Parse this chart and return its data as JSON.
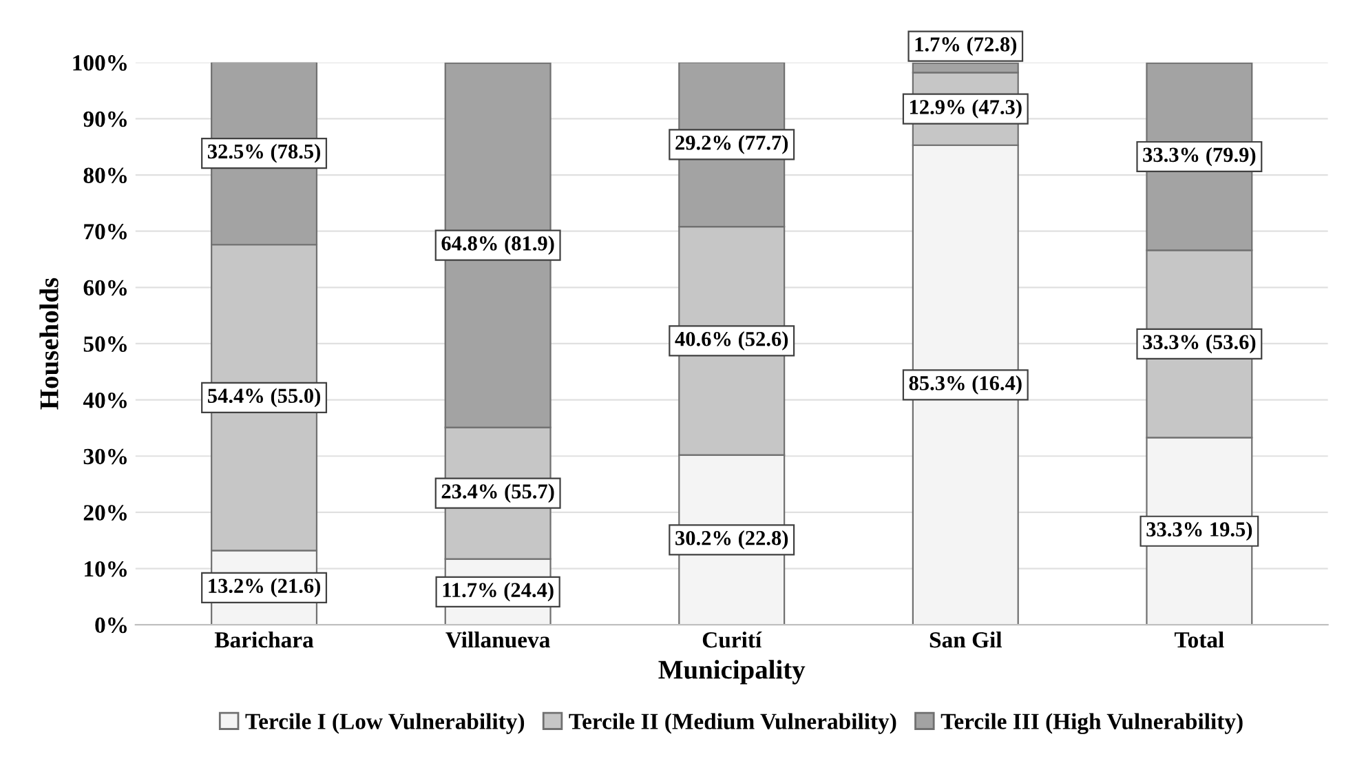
{
  "chart_data": {
    "type": "bar",
    "stacked": true,
    "xlabel": "Municipality",
    "ylabel": "Households",
    "categories": [
      "Barichara",
      "Villanueva",
      "Curití",
      "San Gil",
      "Total"
    ],
    "series": [
      {
        "name": "Tercile I (Low Vulnerability)",
        "color": "#f4f4f4",
        "values": [
          13.2,
          11.7,
          30.2,
          85.3,
          33.3
        ],
        "value_labels": [
          "13.2% (21.6)",
          "11.7% (24.4)",
          "30.2% (22.8)",
          "85.3% (16.4)",
          "33.3% 19.5)"
        ]
      },
      {
        "name": "Tercile II (Medium Vulnerability)",
        "color": "#c6c6c6",
        "values": [
          54.4,
          23.4,
          40.6,
          12.9,
          33.3
        ],
        "value_labels": [
          "54.4% (55.0)",
          "23.4% (55.7)",
          "40.6% (52.6)",
          "12.9% (47.3)",
          "33.3% (53.6)"
        ]
      },
      {
        "name": "Tercile III (High Vulnerability)",
        "color": "#a3a3a3",
        "values": [
          32.5,
          64.8,
          29.2,
          1.7,
          33.3
        ],
        "value_labels": [
          "32.5% (78.5)",
          "64.8% (81.9)",
          "29.2% (77.7)",
          "1.7% (72.8)",
          "33.3% (79.9)"
        ]
      }
    ],
    "ylim": [
      0,
      100
    ],
    "yticks": [
      {
        "value": 0,
        "label": "0%"
      },
      {
        "value": 10,
        "label": "10%"
      },
      {
        "value": 20,
        "label": "20%"
      },
      {
        "value": 30,
        "label": "30%"
      },
      {
        "value": 40,
        "label": "40%"
      },
      {
        "value": 50,
        "label": "50%"
      },
      {
        "value": 60,
        "label": "60%"
      },
      {
        "value": 70,
        "label": "70%"
      },
      {
        "value": 80,
        "label": "80%"
      },
      {
        "value": 90,
        "label": "90%"
      },
      {
        "value": 100,
        "label": "100%"
      }
    ],
    "grid": "y",
    "legend": "bottom"
  }
}
